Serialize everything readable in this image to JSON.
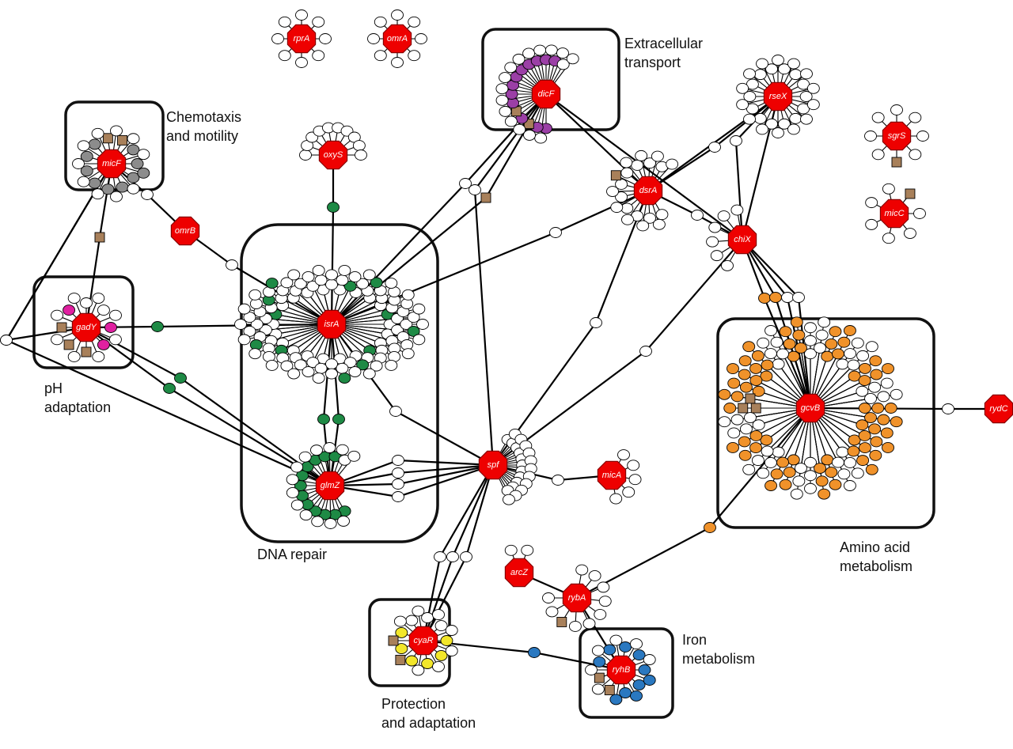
{
  "colors": {
    "srna": "#ee0000",
    "plain": "#ffffff",
    "chemotaxis": "#8c8c8c",
    "transport": "#9b3fa6",
    "ph": "#e020a0",
    "dna_repair": "#1e8a45",
    "amino_acid": "#f0922a",
    "iron": "#2a78c0",
    "protection": "#f2e62a",
    "brown": "#a8805a"
  },
  "module_labels": {
    "transport": "Extracellular\ntransport",
    "chemotaxis": "Chemotaxis\nand motility",
    "ph": "pH\nadaptation",
    "dna_repair": "DNA repair",
    "amino_acid": "Amino acid\nmetabolism",
    "iron": "Iron\nmetabolism",
    "protection": "Protection\nand adaptation"
  },
  "srnas": [
    "rprA",
    "omrA",
    "dicF",
    "rseX",
    "micF",
    "oxyS",
    "sgrS",
    "dsrA",
    "omrB",
    "chiX",
    "micC",
    "gadY",
    "isrA",
    "gcvB",
    "rydC",
    "spf",
    "micA",
    "glmZ",
    "arcZ",
    "rybA",
    "cyaR",
    "ryhB"
  ]
}
